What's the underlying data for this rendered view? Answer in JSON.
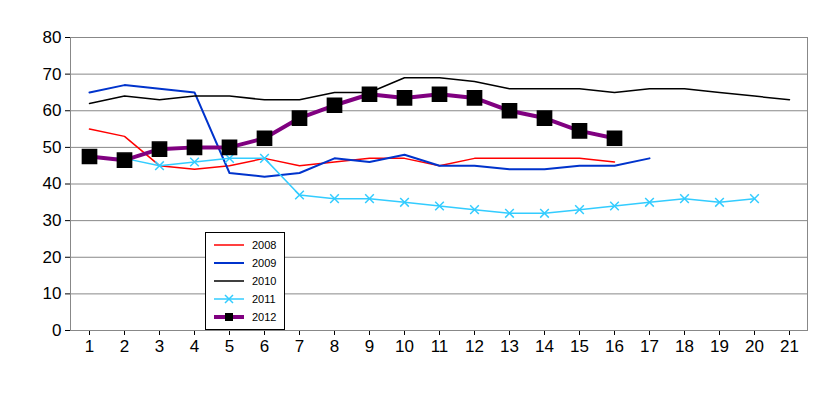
{
  "chart_data": {
    "type": "line",
    "categories": [
      "1",
      "2",
      "3",
      "4",
      "5",
      "6",
      "7",
      "8",
      "9",
      "10",
      "11",
      "12",
      "13",
      "14",
      "15",
      "16",
      "17",
      "18",
      "19",
      "20",
      "21"
    ],
    "ylim": [
      0,
      80
    ],
    "yticks": [
      0,
      10,
      20,
      30,
      40,
      50,
      60,
      70,
      80
    ],
    "grid": true,
    "legend": "bottom-left",
    "series": [
      {
        "name": "2008",
        "color": "#ff0000",
        "marker": "none",
        "values": [
          55,
          53,
          45,
          44,
          45,
          47,
          45,
          46,
          47,
          47,
          45,
          47,
          47,
          47,
          47,
          46,
          null,
          null,
          null,
          null,
          null
        ]
      },
      {
        "name": "2009",
        "color": "#0033cc",
        "marker": "none",
        "values": [
          65,
          67,
          66,
          65,
          43,
          42,
          43,
          47,
          46,
          48,
          45,
          45,
          44,
          44,
          45,
          45,
          47,
          null,
          null,
          null,
          null
        ]
      },
      {
        "name": "2010",
        "color": "#000000",
        "marker": "none",
        "values": [
          62,
          64,
          63,
          64,
          64,
          63,
          63,
          65,
          65,
          69,
          69,
          68,
          66,
          66,
          66,
          65,
          66,
          66,
          65,
          64,
          63
        ]
      },
      {
        "name": "2011",
        "color": "#33ccff",
        "marker": "x",
        "values": [
          47,
          47,
          45,
          46,
          47,
          47,
          37,
          36,
          36,
          35,
          34,
          33,
          32,
          32,
          33,
          34,
          35,
          36,
          35,
          36,
          null
        ]
      },
      {
        "name": "2012",
        "color": "#800080",
        "marker": "square",
        "values": [
          47.5,
          46.5,
          49.5,
          50,
          50,
          52.5,
          58,
          61.5,
          64.5,
          63.5,
          64.5,
          63.5,
          60,
          58,
          54.5,
          52.5,
          null,
          null,
          null,
          null,
          null
        ]
      }
    ]
  }
}
